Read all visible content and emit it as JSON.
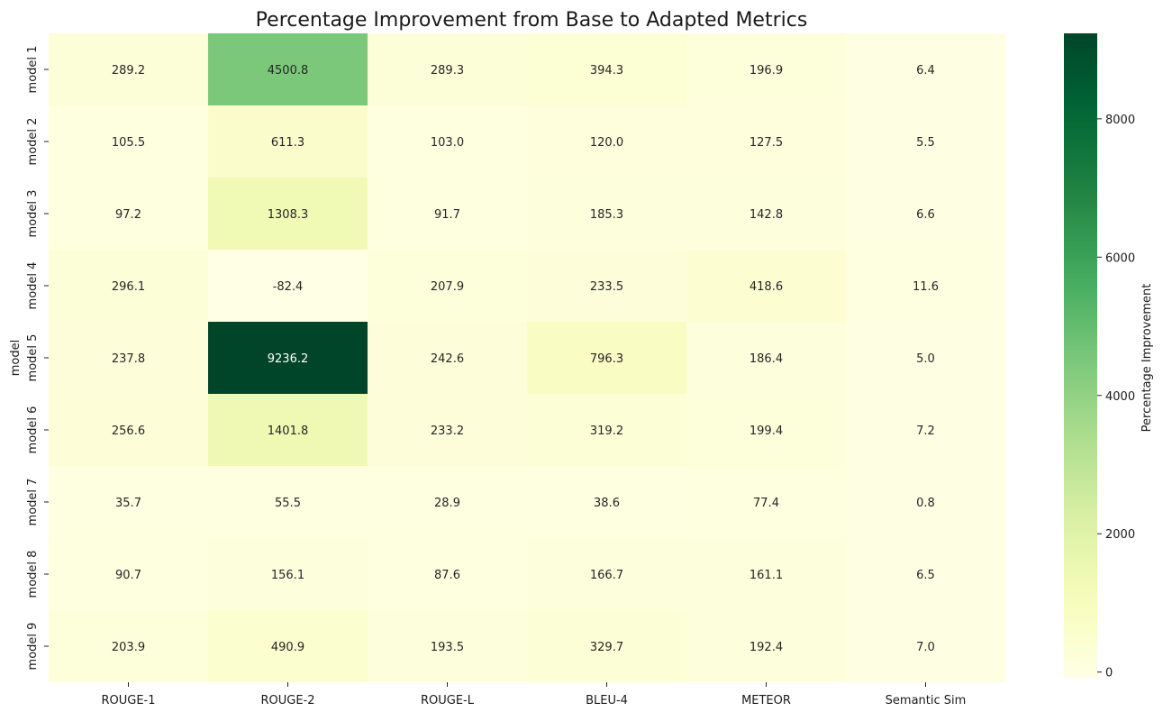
{
  "chart_data": {
    "type": "heatmap",
    "title": "Percentage Improvement from Base to Adapted Metrics",
    "xlabel": "",
    "ylabel": "model",
    "colorbar_label": "Percentage Improvement",
    "colormap": "YlGn",
    "color_range": [
      -82.4,
      9236.2
    ],
    "colorbar_ticks": [
      0,
      2000,
      4000,
      6000,
      8000
    ],
    "columns": [
      "ROUGE-1",
      "ROUGE-2",
      "ROUGE-L",
      "BLEU-4",
      "METEOR",
      "Semantic Sim"
    ],
    "rows": [
      "model 1",
      "model 2",
      "model 3",
      "model 4",
      "model 5",
      "model 6",
      "model 7",
      "model 8",
      "model 9"
    ],
    "values": [
      [
        289.2,
        4500.8,
        289.3,
        394.3,
        196.9,
        6.4
      ],
      [
        105.5,
        611.3,
        103.0,
        120.0,
        127.5,
        5.5
      ],
      [
        97.2,
        1308.3,
        91.7,
        185.3,
        142.8,
        6.6
      ],
      [
        296.1,
        -82.4,
        207.9,
        233.5,
        418.6,
        11.6
      ],
      [
        237.8,
        9236.2,
        242.6,
        796.3,
        186.4,
        5.0
      ],
      [
        256.6,
        1401.8,
        233.2,
        319.2,
        199.4,
        7.2
      ],
      [
        35.7,
        55.5,
        28.9,
        38.6,
        77.4,
        0.8
      ],
      [
        90.7,
        156.1,
        87.6,
        166.7,
        161.1,
        6.5
      ],
      [
        203.9,
        490.9,
        193.5,
        329.7,
        192.4,
        7.0
      ]
    ]
  },
  "colors": {
    "low": "#ffffe5",
    "high": "#004529",
    "text_dark": "#262626",
    "text_light": "#ffffff"
  }
}
